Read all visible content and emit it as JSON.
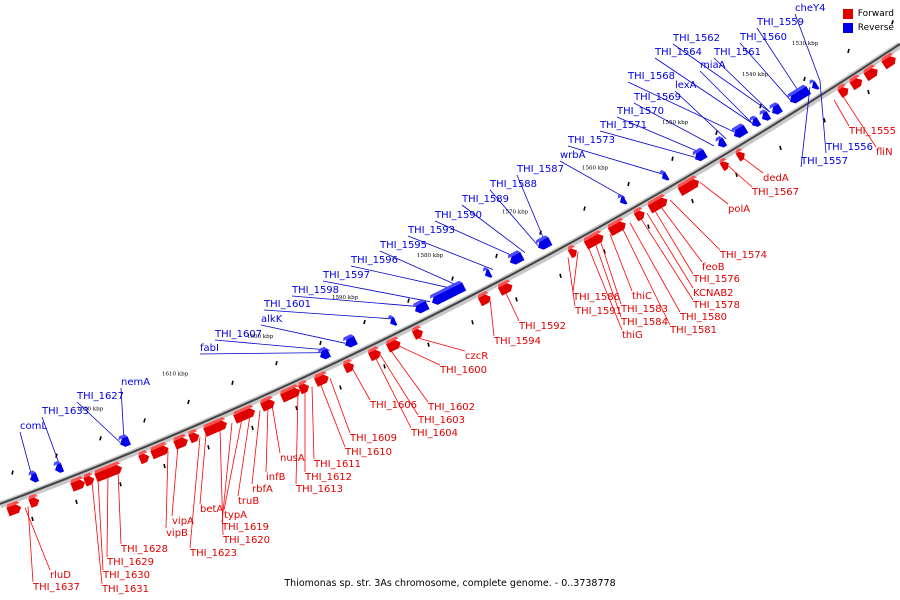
{
  "colors": {
    "forward": "#e00000",
    "reverse": "#0000e6",
    "line_forward": "#ff0000",
    "line_reverse": "#0000cc"
  },
  "legend": {
    "forward": "Forward",
    "reverse": "Reverse"
  },
  "caption": "Thiomonas sp. str. 3As chromosome, complete genome. - 0..3738778",
  "ticks": [
    "1530 kbp",
    "1540 kbp",
    "1550 kbp",
    "1560 kbp",
    "1570 kbp",
    "1580 kbp",
    "1590 kbp",
    "1600 kbp",
    "1610 kbp",
    "1620 kbp"
  ],
  "forward_labels": [
    "fliN",
    "THI_1555",
    "dedA",
    "THI_1567",
    "polA",
    "THI_1574",
    "feoB",
    "THI_1576",
    "KCNAB2",
    "THI_1578",
    "THI_1580",
    "THI_1581",
    "thiC",
    "THI_1583",
    "THI_1584",
    "thiG",
    "THI_1586",
    "THI_1591",
    "THI_1592",
    "THI_1594",
    "czcR",
    "THI_1600",
    "THI_1602",
    "THI_1603",
    "THI_1604",
    "THI_1606",
    "THI_1609",
    "THI_1610",
    "THI_1611",
    "THI_1612",
    "THI_1613",
    "nusA",
    "infB",
    "rbfA",
    "truB",
    "typA",
    "THI_1619",
    "THI_1620",
    "betA",
    "THI_1623",
    "vipA",
    "vipB",
    "THI_1628",
    "THI_1629",
    "THI_1630",
    "THI_1631",
    "rluD",
    "THI_1637"
  ],
  "reverse_labels": [
    "cheY4",
    "THI_1559",
    "THI_1560",
    "THI_1562",
    "THI_1561",
    "THI_1564",
    "miaA",
    "THI_1568",
    "lexA",
    "THI_1569",
    "THI_1570",
    "THI_1571",
    "THI_1573",
    "wrbA",
    "THI_1587",
    "THI_1588",
    "THI_1589",
    "THI_1590",
    "THI_1593",
    "THI_1595",
    "THI_1596",
    "THI_1597",
    "THI_1598",
    "THI_1601",
    "alkK",
    "THI_1607",
    "fabI",
    "nemA",
    "THI_1627",
    "THI_1633",
    "comL",
    "THI_1556",
    "THI_1557"
  ]
}
